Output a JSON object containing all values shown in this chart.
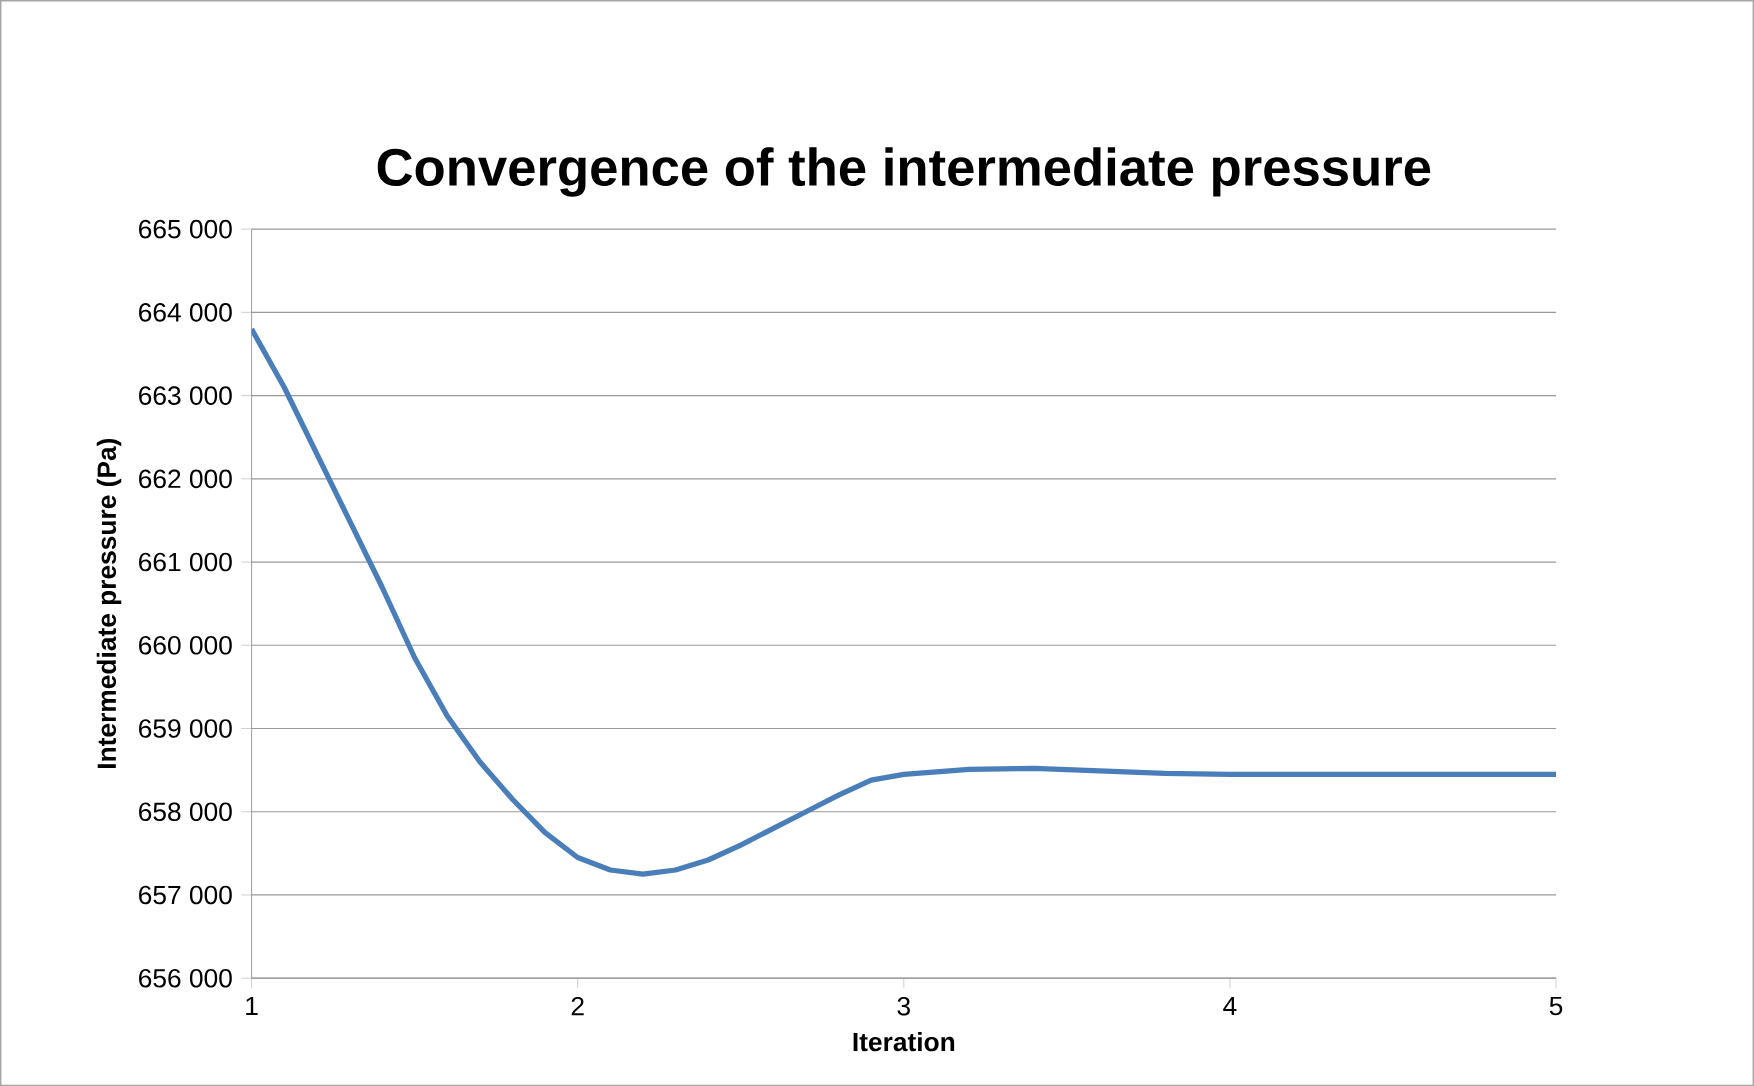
{
  "chart_data": {
    "type": "line",
    "title": "Convergence of the intermediate pressure",
    "xlabel": "Iteration",
    "ylabel": "Intermediate pressure (Pa)",
    "x": [
      1,
      1.1,
      1.2,
      1.3,
      1.4,
      1.5,
      1.6,
      1.7,
      1.8,
      1.9,
      2,
      2.1,
      2.2,
      2.3,
      2.4,
      2.5,
      2.6,
      2.7,
      2.8,
      2.9,
      3,
      3.2,
      3.4,
      3.6,
      3.8,
      4,
      4.5,
      5
    ],
    "series": [
      {
        "color": "#4a7ebb",
        "values": [
          663800,
          663100,
          662300,
          661500,
          660700,
          659850,
          659150,
          658600,
          658150,
          657750,
          657450,
          657300,
          657250,
          657300,
          657420,
          657600,
          657800,
          658000,
          658200,
          658380,
          658450,
          658510,
          658520,
          658490,
          658460,
          658450,
          658450,
          658450
        ]
      }
    ],
    "xlim": [
      1,
      5
    ],
    "xticks": [
      1,
      2,
      3,
      4,
      5
    ],
    "ylim": [
      656000,
      665000
    ],
    "yticks": [
      {
        "value": 656000,
        "label": "656 000"
      },
      {
        "value": 657000,
        "label": "657 000"
      },
      {
        "value": 658000,
        "label": "658 000"
      },
      {
        "value": 659000,
        "label": "659 000"
      },
      {
        "value": 660000,
        "label": "660 000"
      },
      {
        "value": 661000,
        "label": "661 000"
      },
      {
        "value": 662000,
        "label": "662 000"
      },
      {
        "value": 663000,
        "label": "663 000"
      },
      {
        "value": 664000,
        "label": "664 000"
      },
      {
        "value": 665000,
        "label": "665 000"
      }
    ],
    "grid": "y",
    "marker": "none",
    "line_style": "solid"
  }
}
